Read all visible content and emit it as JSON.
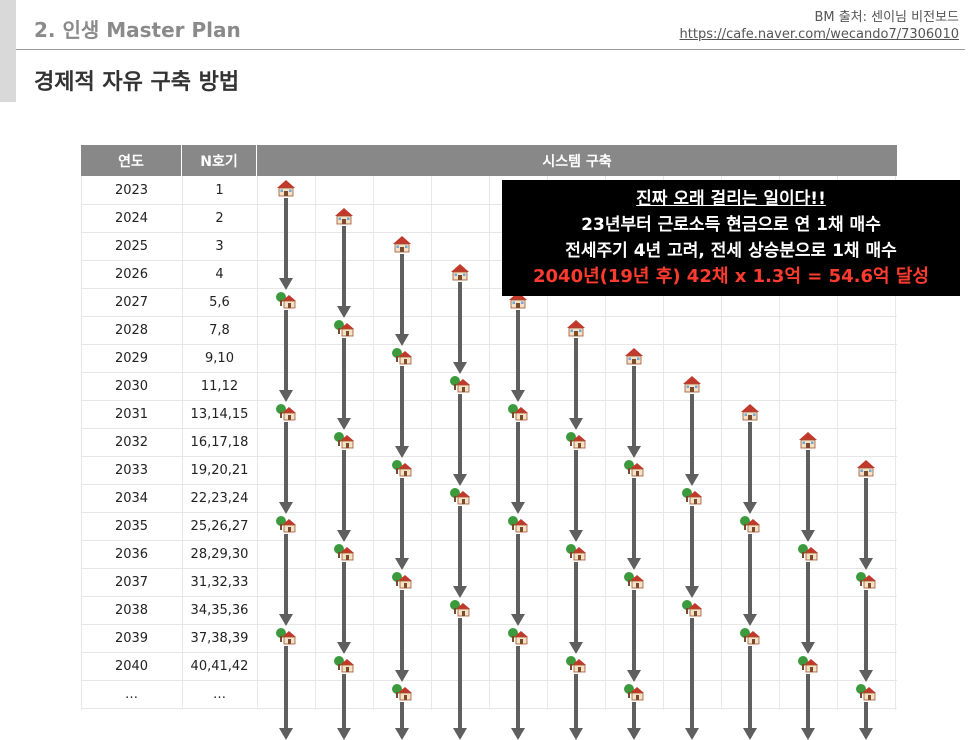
{
  "header": {
    "section_title": "2. 인생 Master Plan",
    "source_label": "BM 출처: 센이님 비전보드",
    "source_url": "https://cafe.naver.com/wecando7/7306010"
  },
  "page_title": "경제적 자유 구축 방법",
  "table": {
    "headers": {
      "year": "연도",
      "n": "N호기",
      "system": "시스템 구축"
    },
    "rows": [
      {
        "year": "2023",
        "n": "1"
      },
      {
        "year": "2024",
        "n": "2"
      },
      {
        "year": "2025",
        "n": "3"
      },
      {
        "year": "2026",
        "n": "4"
      },
      {
        "year": "2027",
        "n": "5,6"
      },
      {
        "year": "2028",
        "n": "7,8"
      },
      {
        "year": "2029",
        "n": "9,10"
      },
      {
        "year": "2030",
        "n": "11,12"
      },
      {
        "year": "2031",
        "n": "13,14,15"
      },
      {
        "year": "2032",
        "n": "16,17,18"
      },
      {
        "year": "2033",
        "n": "19,20,21"
      },
      {
        "year": "2034",
        "n": "22,23,24"
      },
      {
        "year": "2035",
        "n": "25,26,27"
      },
      {
        "year": "2036",
        "n": "28,29,30"
      },
      {
        "year": "2037",
        "n": "31,32,33"
      },
      {
        "year": "2038",
        "n": "34,35,36"
      },
      {
        "year": "2039",
        "n": "37,38,39"
      },
      {
        "year": "2040",
        "n": "40,41,42"
      },
      {
        "year": "…",
        "n": "…"
      }
    ]
  },
  "icons": {
    "house": "house-icon",
    "house_with_tree": "house-with-tree-icon",
    "arrow": "down-arrow-icon"
  },
  "callout": {
    "line1": "진짜 오래 걸리는 일이다!!",
    "line2": "23년부터 근로소득 현금으로 연 1채 매수",
    "line3": "전세주기 4년 고려, 전세 상승분으로 1채 매수",
    "line4": "2040년(19년 후) 42채 x 1.3억 = 54.6억 달성"
  },
  "colors": {
    "header_bg": "#888888",
    "callout_bg": "#000000",
    "highlight": "#ff3b30",
    "arrow": "#5f5f5f"
  }
}
